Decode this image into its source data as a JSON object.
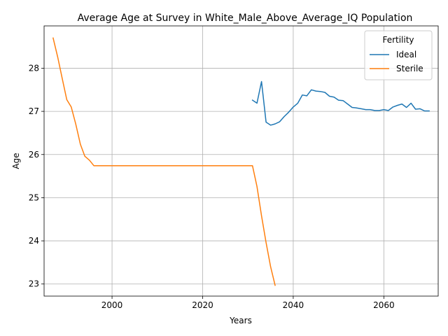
{
  "chart_data": {
    "type": "line",
    "title": "Average Age at Survey in White_Male_Above_Average_IQ Population",
    "xlabel": "Years",
    "ylabel": "Age",
    "xlim": [
      1985,
      2072
    ],
    "ylim": [
      22.72,
      28.98
    ],
    "xticks": [
      2000,
      2020,
      2040,
      2060
    ],
    "yticks": [
      23,
      24,
      25,
      26,
      27,
      28
    ],
    "grid": true,
    "legend": {
      "title": "Fertility",
      "placement": "top-right"
    },
    "series": [
      {
        "name": "Ideal",
        "color": "#1f77b4",
        "x": [
          2031,
          2032,
          2033,
          2034,
          2035,
          2036,
          2037,
          2038,
          2039,
          2040,
          2041,
          2042,
          2043,
          2044,
          2045,
          2046,
          2047,
          2048,
          2049,
          2050,
          2051,
          2052,
          2053,
          2054,
          2055,
          2056,
          2057,
          2058,
          2059,
          2060,
          2061,
          2062,
          2063,
          2064,
          2065,
          2066,
          2067,
          2068,
          2069,
          2070
        ],
        "y": [
          27.26,
          27.19,
          27.69,
          26.75,
          26.68,
          26.71,
          26.76,
          26.88,
          26.98,
          27.1,
          27.19,
          27.38,
          27.36,
          27.5,
          27.47,
          27.46,
          27.44,
          27.35,
          27.33,
          27.26,
          27.25,
          27.17,
          27.09,
          27.08,
          27.06,
          27.04,
          27.04,
          27.02,
          27.02,
          27.04,
          27.02,
          27.1,
          27.14,
          27.17,
          27.09,
          27.19,
          27.05,
          27.06,
          27.01,
          27.01
        ]
      },
      {
        "name": "Sterile",
        "color": "#ff7f0e",
        "x": [
          1987,
          1988,
          1989,
          1990,
          1991,
          1992,
          1993,
          1994,
          1995,
          1996,
          1997,
          1998,
          1999,
          2000,
          2005,
          2010,
          2015,
          2020,
          2025,
          2029,
          2030,
          2031,
          2032,
          2033,
          2034,
          2035,
          2036
        ],
        "y": [
          28.7,
          28.26,
          27.76,
          27.27,
          27.1,
          26.7,
          26.24,
          25.96,
          25.87,
          25.74,
          25.74,
          25.74,
          25.74,
          25.74,
          25.74,
          25.74,
          25.74,
          25.74,
          25.74,
          25.74,
          25.74,
          25.74,
          25.26,
          24.58,
          23.96,
          23.4,
          22.97
        ]
      }
    ]
  }
}
